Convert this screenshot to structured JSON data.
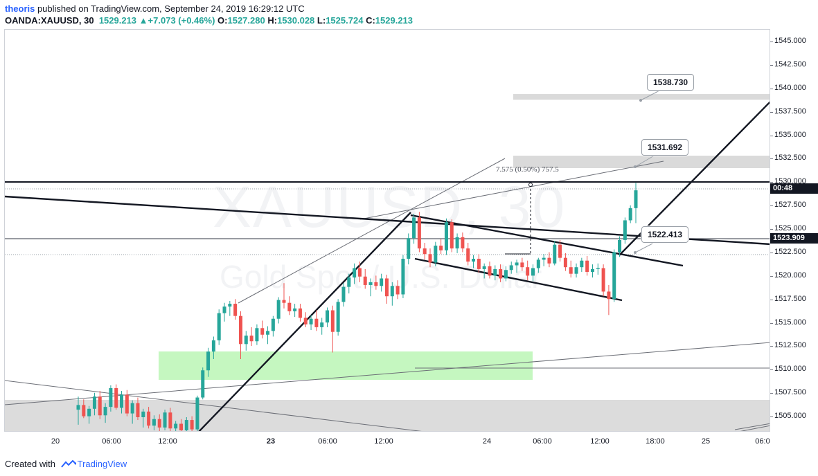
{
  "header": {
    "author": "theoris",
    "published_text": " published on TradingView.com, September 24, 2019 16:29:12 UTC",
    "symbol": "OANDA:XAUUSD, 30",
    "last": "1529.213",
    "change": "+7.073 (+0.46%)",
    "o_label": "O:",
    "o_value": "1527.280",
    "h_label": "H:",
    "h_value": "1530.028",
    "l_label": "L:",
    "l_value": "1525.724",
    "c_label": "C:",
    "c_value": "1529.213"
  },
  "watermark": {
    "symbol": "XAUUSD, 30",
    "description": "Gold Spot / U.S. Dollar"
  },
  "price_axis": {
    "ticks": [
      "1545.000",
      "1542.500",
      "1540.000",
      "1537.500",
      "1535.000",
      "1532.500",
      "1530.000",
      "1527.500",
      "1525.000",
      "1522.500",
      "1520.000",
      "1517.500",
      "1515.000",
      "1512.500",
      "1510.000",
      "1507.500",
      "1505.000"
    ],
    "countdown_tag": "00:48",
    "level_tag": "1523.909"
  },
  "time_axis": {
    "ticks": [
      {
        "label": "20",
        "bold": false
      },
      {
        "label": "06:00",
        "bold": false
      },
      {
        "label": "12:00",
        "bold": false
      },
      {
        "label": "23",
        "bold": true
      },
      {
        "label": "06:00",
        "bold": false
      },
      {
        "label": "12:00",
        "bold": false
      },
      {
        "label": "24",
        "bold": false
      },
      {
        "label": "06:00",
        "bold": false
      },
      {
        "label": "12:00",
        "bold": false
      },
      {
        "label": "18:00",
        "bold": false
      },
      {
        "label": "25",
        "bold": false
      },
      {
        "label": "06:0",
        "bold": false
      }
    ]
  },
  "annotations": {
    "callout_1": "1538.730",
    "callout_2": "1531.692",
    "callout_3": "1522.413",
    "measure": "7.575 (0.50%) 757.5"
  },
  "colors": {
    "up": "#26a69a",
    "down": "#ef5350",
    "accent": "#2962ff",
    "zone_green": "#b7f5b0",
    "zone_gray": "#d6d6d6"
  },
  "footer": {
    "created_with": "Created with",
    "brand": "TradingView"
  }
}
